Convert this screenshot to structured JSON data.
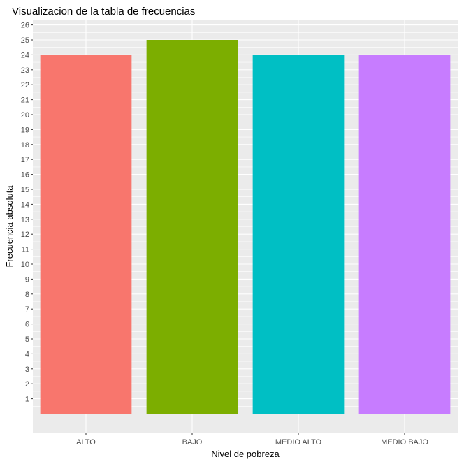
{
  "chart_data": {
    "type": "bar",
    "title": "Visualizacion de la tabla de frecuencias",
    "xlabel": "Nivel de pobreza",
    "ylabel": "Frecuencia absoluta",
    "categories": [
      "ALTO",
      "BAJO",
      "MEDIO ALTO",
      "MEDIO BAJO"
    ],
    "values": [
      24,
      25,
      24,
      24
    ],
    "colors": [
      "#F8766D",
      "#7CAE00",
      "#00BFC4",
      "#C77CFF"
    ],
    "ylim": [
      0,
      26
    ],
    "yticks": [
      1,
      2,
      3,
      4,
      5,
      6,
      7,
      8,
      9,
      10,
      11,
      12,
      13,
      14,
      15,
      16,
      17,
      18,
      19,
      20,
      21,
      22,
      23,
      24,
      25,
      26
    ],
    "ytick_labels": [
      "1",
      "2",
      "3",
      "4",
      "5",
      "6",
      "7",
      "8",
      "9",
      "10",
      "11",
      "12",
      "13",
      "14",
      "15",
      "16",
      "17",
      "18",
      "19",
      "20",
      "21",
      "22",
      "23",
      "24",
      "25",
      "26"
    ],
    "grid": true,
    "legend": "none",
    "panel_background": "#EBEBEB",
    "grid_color": "#FFFFFF"
  }
}
